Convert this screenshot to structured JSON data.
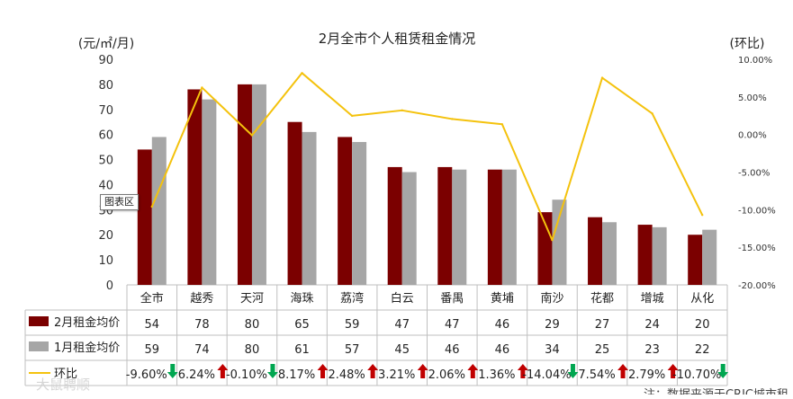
{
  "chart_data": {
    "type": "bar",
    "title": "2月全市个人租赁租金情况",
    "y_left_unit": "(元/㎡/月)",
    "y_right_unit": "(环比)",
    "ylim": [
      0,
      90
    ],
    "yticks": [
      "0",
      "10",
      "20",
      "30",
      "40",
      "50",
      "60",
      "70",
      "80",
      "90"
    ],
    "y2lim": [
      -20,
      10
    ],
    "y2ticks": [
      "-20.00%",
      "-15.00%",
      "-10.00%",
      "-5.00%",
      "0.00%",
      "5.00%",
      "10.00%"
    ],
    "categories": [
      "全市",
      "越秀",
      "天河",
      "海珠",
      "荔湾",
      "白云",
      "番禺",
      "黄埔",
      "南沙",
      "花都",
      "增城",
      "从化"
    ],
    "series": [
      {
        "name": "2月租金均价",
        "type": "bar",
        "color": "#7b0000",
        "values": [
          54,
          78,
          80,
          65,
          59,
          47,
          47,
          46,
          29,
          27,
          24,
          20
        ],
        "display": [
          "54",
          "78",
          "80",
          "65",
          "59",
          "47",
          "47",
          "46",
          "29",
          "27",
          "24",
          "20"
        ]
      },
      {
        "name": "1月租金均价",
        "type": "bar",
        "color": "#a6a6a6",
        "values": [
          59,
          74,
          80,
          61,
          57,
          45,
          46,
          46,
          34,
          25,
          23,
          22
        ],
        "display": [
          "59",
          "74",
          "80",
          "61",
          "57",
          "45",
          "46",
          "46",
          "34",
          "25",
          "23",
          "22"
        ]
      },
      {
        "name": "环比",
        "type": "line",
        "axis": "right",
        "color": "#f4c20d",
        "values": [
          -9.6,
          6.24,
          -0.1,
          8.17,
          2.48,
          3.21,
          2.06,
          1.36,
          -14.04,
          7.54,
          2.79,
          -10.7
        ],
        "display": [
          "-9.60%",
          "6.24%",
          "-0.10%",
          "8.17%",
          "2.48%",
          "3.21%",
          "2.06%",
          "1.36%",
          "-14.04%",
          "7.54%",
          "2.79%",
          "-10.70%"
        ]
      }
    ],
    "trend_arrows": [
      "down",
      "up",
      "down",
      "up",
      "up",
      "up",
      "up",
      "up",
      "down",
      "up",
      "up",
      "down"
    ],
    "arrow_colors": {
      "up": "#c00000",
      "down": "#00a650"
    },
    "tooltip": "图表区",
    "footer_note": "注：数据来源于CRIC城市租",
    "watermark_left": "大鼠聘顺",
    "grid": false,
    "legend": "table-bottom"
  }
}
